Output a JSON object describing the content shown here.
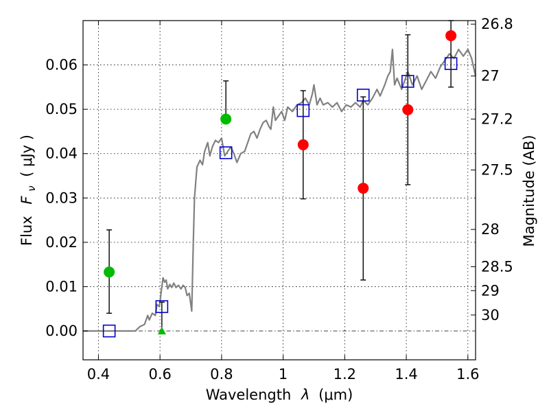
{
  "chart_data": {
    "type": "scatter",
    "xlabel_prefix": "Wavelength",
    "xlabel_symbol": "λ",
    "xlabel_unit": "(μm)",
    "ylabel_prefix": "Flux",
    "ylabel_symbol": "F",
    "ylabel_subscript": "ν",
    "ylabel_unit": "( μJy )",
    "y2label": "Magnitude (AB)",
    "xlim": [
      0.35,
      1.625
    ],
    "ylim": [
      -0.0065,
      0.07
    ],
    "grid": true,
    "x_ticks": [
      {
        "value": 0.4,
        "label": "0.4"
      },
      {
        "value": 0.6,
        "label": "0.6"
      },
      {
        "value": 0.8,
        "label": "0.8"
      },
      {
        "value": 1.0,
        "label": "1"
      },
      {
        "value": 1.2,
        "label": "1.2"
      },
      {
        "value": 1.4,
        "label": "1.4"
      },
      {
        "value": 1.6,
        "label": "1.6"
      }
    ],
    "y_ticks": [
      {
        "value": 0.0,
        "label": "0.00"
      },
      {
        "value": 0.01,
        "label": "0.01"
      },
      {
        "value": 0.02,
        "label": "0.02"
      },
      {
        "value": 0.03,
        "label": "0.03"
      },
      {
        "value": 0.04,
        "label": "0.04"
      },
      {
        "value": 0.05,
        "label": "0.05"
      },
      {
        "value": 0.06,
        "label": "0.06"
      }
    ],
    "mag_ticks": [
      {
        "value": 0.0692,
        "label": "26.8"
      },
      {
        "value": 0.0575,
        "label": "27"
      },
      {
        "value": 0.0478,
        "label": "27.2"
      },
      {
        "value": 0.0363,
        "label": "27.5"
      },
      {
        "value": 0.0229,
        "label": "28"
      },
      {
        "value": 0.0145,
        "label": "28.5"
      },
      {
        "value": 0.0091,
        "label": "29"
      },
      {
        "value": 0.0036,
        "label": "30"
      }
    ],
    "model_spectrum": {
      "color": "#808080",
      "points": [
        [
          0.35,
          0.0
        ],
        [
          0.52,
          0.0
        ],
        [
          0.535,
          0.001
        ],
        [
          0.55,
          0.0015
        ],
        [
          0.56,
          0.0035
        ],
        [
          0.565,
          0.0025
        ],
        [
          0.575,
          0.004
        ],
        [
          0.585,
          0.0035
        ],
        [
          0.59,
          0.006
        ],
        [
          0.598,
          0.0055
        ],
        [
          0.605,
          0.0095
        ],
        [
          0.61,
          0.012
        ],
        [
          0.615,
          0.011
        ],
        [
          0.62,
          0.0115
        ],
        [
          0.625,
          0.0095
        ],
        [
          0.632,
          0.0105
        ],
        [
          0.638,
          0.0098
        ],
        [
          0.645,
          0.0108
        ],
        [
          0.652,
          0.0098
        ],
        [
          0.66,
          0.0103
        ],
        [
          0.668,
          0.0095
        ],
        [
          0.675,
          0.0103
        ],
        [
          0.682,
          0.0098
        ],
        [
          0.688,
          0.008
        ],
        [
          0.695,
          0.0085
        ],
        [
          0.703,
          0.0045
        ],
        [
          0.708,
          0.0195
        ],
        [
          0.712,
          0.03
        ],
        [
          0.72,
          0.037
        ],
        [
          0.73,
          0.0385
        ],
        [
          0.738,
          0.0375
        ],
        [
          0.745,
          0.0405
        ],
        [
          0.755,
          0.0425
        ],
        [
          0.762,
          0.0395
        ],
        [
          0.77,
          0.0415
        ],
        [
          0.78,
          0.043
        ],
        [
          0.79,
          0.0425
        ],
        [
          0.8,
          0.0435
        ],
        [
          0.81,
          0.0395
        ],
        [
          0.82,
          0.0405
        ],
        [
          0.83,
          0.0415
        ],
        [
          0.84,
          0.04
        ],
        [
          0.85,
          0.038
        ],
        [
          0.862,
          0.04
        ],
        [
          0.875,
          0.0405
        ],
        [
          0.885,
          0.0425
        ],
        [
          0.895,
          0.0445
        ],
        [
          0.905,
          0.045
        ],
        [
          0.915,
          0.0435
        ],
        [
          0.925,
          0.0455
        ],
        [
          0.935,
          0.047
        ],
        [
          0.945,
          0.0475
        ],
        [
          0.955,
          0.046
        ],
        [
          0.96,
          0.0455
        ],
        [
          0.968,
          0.0505
        ],
        [
          0.975,
          0.0475
        ],
        [
          0.985,
          0.0485
        ],
        [
          0.995,
          0.0495
        ],
        [
          1.005,
          0.0475
        ],
        [
          1.015,
          0.0505
        ],
        [
          1.03,
          0.0495
        ],
        [
          1.045,
          0.051
        ],
        [
          1.06,
          0.0515
        ],
        [
          1.072,
          0.0525
        ],
        [
          1.085,
          0.051
        ],
        [
          1.095,
          0.0535
        ],
        [
          1.1,
          0.0555
        ],
        [
          1.11,
          0.051
        ],
        [
          1.12,
          0.0525
        ],
        [
          1.13,
          0.051
        ],
        [
          1.145,
          0.0515
        ],
        [
          1.16,
          0.0505
        ],
        [
          1.175,
          0.0515
        ],
        [
          1.19,
          0.0495
        ],
        [
          1.205,
          0.051
        ],
        [
          1.22,
          0.0505
        ],
        [
          1.235,
          0.0515
        ],
        [
          1.25,
          0.0505
        ],
        [
          1.26,
          0.052
        ],
        [
          1.275,
          0.051
        ],
        [
          1.29,
          0.0525
        ],
        [
          1.305,
          0.0545
        ],
        [
          1.315,
          0.053
        ],
        [
          1.33,
          0.0555
        ],
        [
          1.34,
          0.0575
        ],
        [
          1.348,
          0.0585
        ],
        [
          1.355,
          0.0635
        ],
        [
          1.362,
          0.0555
        ],
        [
          1.37,
          0.057
        ],
        [
          1.385,
          0.0545
        ],
        [
          1.395,
          0.0565
        ],
        [
          1.405,
          0.0585
        ],
        [
          1.42,
          0.0555
        ],
        [
          1.435,
          0.0575
        ],
        [
          1.45,
          0.0545
        ],
        [
          1.465,
          0.0565
        ],
        [
          1.48,
          0.0585
        ],
        [
          1.495,
          0.057
        ],
        [
          1.51,
          0.0595
        ],
        [
          1.525,
          0.061
        ],
        [
          1.54,
          0.0625
        ],
        [
          1.555,
          0.0615
        ],
        [
          1.57,
          0.0635
        ],
        [
          1.585,
          0.062
        ],
        [
          1.6,
          0.0635
        ],
        [
          1.612,
          0.0615
        ],
        [
          1.625,
          0.0575
        ]
      ]
    },
    "model_photometry": {
      "marker": "open-square",
      "color": "#0000cc",
      "points": [
        {
          "x": 0.435,
          "y": 0.0
        },
        {
          "x": 0.606,
          "y": 0.0055
        },
        {
          "x": 0.814,
          "y": 0.0402
        },
        {
          "x": 1.065,
          "y": 0.0497
        },
        {
          "x": 1.26,
          "y": 0.0532
        },
        {
          "x": 1.405,
          "y": 0.0563
        },
        {
          "x": 1.545,
          "y": 0.0603
        }
      ]
    },
    "observed_optical": {
      "marker": "filled-circle",
      "color": "#00bb00",
      "points": [
        {
          "x": 0.435,
          "y": 0.0133,
          "err_lo": 0.004,
          "err_hi": 0.0228
        },
        {
          "x": 0.814,
          "y": 0.0478,
          "err_lo": null,
          "err_hi": 0.0564
        }
      ]
    },
    "observed_optical_limit": {
      "marker": "filled-triangle",
      "color": "#00bb00",
      "points": [
        {
          "x": 0.606,
          "y": 0.0,
          "err_lo": -0.0005,
          "err_hi": 0.0065
        }
      ]
    },
    "observed_nir": {
      "marker": "filled-circle",
      "color": "#ff0000",
      "points": [
        {
          "x": 1.065,
          "y": 0.042,
          "err_lo": 0.0298,
          "err_hi": 0.0542
        },
        {
          "x": 1.26,
          "y": 0.0322,
          "err_lo": 0.0115,
          "err_hi": 0.0528
        },
        {
          "x": 1.405,
          "y": 0.0499,
          "err_lo": 0.033,
          "err_hi": 0.0668
        },
        {
          "x": 1.545,
          "y": 0.0666,
          "err_lo": 0.055,
          "err_hi": 0.07
        }
      ]
    },
    "zero_line": {
      "y": 0.0,
      "style": "dash-dot"
    }
  }
}
